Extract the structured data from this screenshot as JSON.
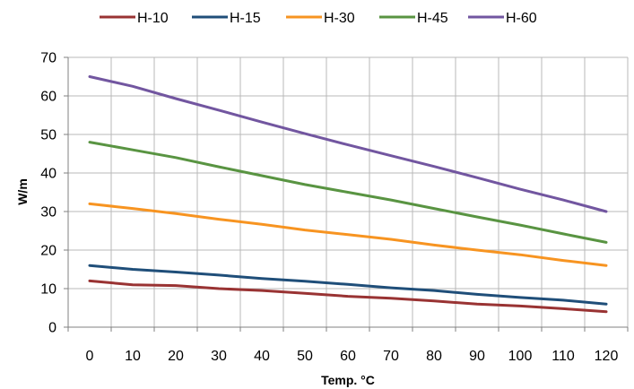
{
  "chart_data": {
    "type": "line",
    "title": "",
    "xlabel": "Temp. °C",
    "ylabel": "W/m",
    "x": [
      0,
      10,
      20,
      30,
      40,
      50,
      60,
      70,
      80,
      90,
      100,
      110,
      120
    ],
    "xlim": [
      -5,
      125
    ],
    "ylim": [
      0,
      70
    ],
    "xticks": [
      "0",
      "10",
      "20",
      "30",
      "40",
      "50",
      "60",
      "70",
      "80",
      "90",
      "100",
      "110",
      "120"
    ],
    "yticks": [
      "0",
      "10",
      "20",
      "30",
      "40",
      "50",
      "60",
      "70"
    ],
    "grid": true,
    "legend": "top",
    "series": [
      {
        "name": "H-10",
        "color": "#993333",
        "values": [
          12,
          11,
          10.8,
          10,
          9.5,
          8.8,
          8,
          7.5,
          6.8,
          6,
          5.5,
          4.8,
          4
        ]
      },
      {
        "name": "H-15",
        "color": "#1f4e79",
        "values": [
          16,
          15,
          14.3,
          13.5,
          12.6,
          11.9,
          11.1,
          10.2,
          9.5,
          8.5,
          7.7,
          7,
          6
        ]
      },
      {
        "name": "H-30",
        "color": "#f79421",
        "values": [
          32,
          30.8,
          29.5,
          28,
          26.7,
          25.2,
          24,
          22.8,
          21.3,
          20,
          18.8,
          17.3,
          16
        ]
      },
      {
        "name": "H-45",
        "color": "#599442",
        "values": [
          48,
          46,
          44,
          41.6,
          39.3,
          37,
          35,
          33,
          30.8,
          28.6,
          26.5,
          24.2,
          22
        ]
      },
      {
        "name": "H-60",
        "color": "#7256a0",
        "values": [
          65,
          62.5,
          59.3,
          56.3,
          53.2,
          50.2,
          47.3,
          44.5,
          41.7,
          38.8,
          35.8,
          33,
          30
        ]
      }
    ]
  }
}
